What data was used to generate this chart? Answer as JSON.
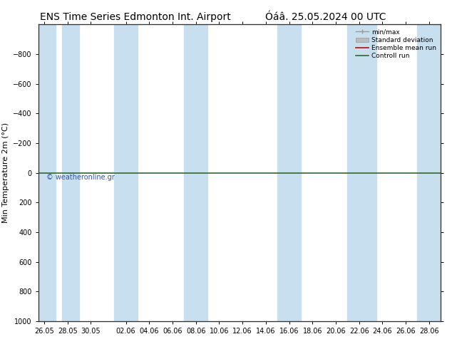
{
  "title_left": "ENS Time Series Edmonton Int. Airport",
  "title_right": "Óáâ. 25.05.2024 00 UTC",
  "ylabel": "Min Temperature 2m (°C)",
  "ylim_top": -1000,
  "ylim_bottom": 1000,
  "yticks": [
    -800,
    -600,
    -400,
    -200,
    0,
    200,
    400,
    600,
    800,
    1000
  ],
  "xlabels": [
    "26.05",
    "28.05",
    "30.05",
    "02.06",
    "04.06",
    "06.06",
    "08.06",
    "10.06",
    "12.06",
    "14.06",
    "16.06",
    "18.06",
    "20.06",
    "22.06",
    "24.06",
    "26.06",
    "28.06"
  ],
  "x_values": [
    0,
    2,
    4,
    7,
    9,
    11,
    13,
    15,
    17,
    19,
    21,
    23,
    25,
    27,
    29,
    31,
    33
  ],
  "control_run_y": 0,
  "control_run_color": "#2d6a2d",
  "ensemble_mean_color": "#cc0000",
  "band_color": "#c8dff0",
  "band_alpha": 1.0,
  "background_color": "#ffffff",
  "watermark": "© weatheronline.gr",
  "watermark_color": "#3355aa",
  "title_fontsize": 10,
  "ylabel_fontsize": 8,
  "tick_fontsize": 7,
  "legend_labels": [
    "min/max",
    "Standard deviation",
    "Ensemble mean run",
    "Controll run"
  ],
  "legend_colors_line": [
    "#999999",
    "#bbbbbb",
    "#cc0000",
    "#2d6a2d"
  ],
  "band_xspans": [
    [
      -0.5,
      1.0
    ],
    [
      1.5,
      3.0
    ],
    [
      6.0,
      8.0
    ],
    [
      12.0,
      14.0
    ],
    [
      20.0,
      22.0
    ],
    [
      26.0,
      28.5
    ],
    [
      32.0,
      34.0
    ]
  ],
  "xlim": [
    -0.5,
    34.0
  ],
  "spine_color": "#333333",
  "spine_linewidth": 0.8
}
